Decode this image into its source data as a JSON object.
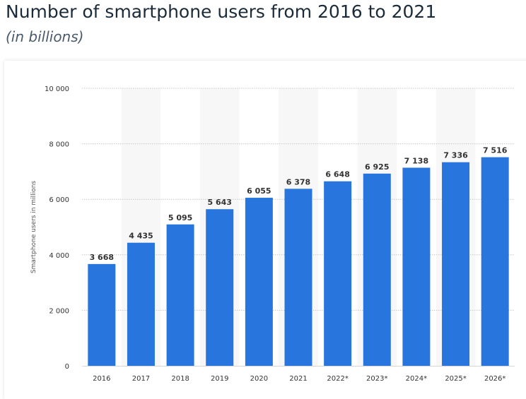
{
  "header": {
    "title": "Number of smartphone users from 2016 to 2021",
    "subtitle": "(in billions)"
  },
  "chart_data": {
    "type": "bar",
    "title": "Number of smartphone users from 2016 to 2021",
    "subtitle": "(in billions)",
    "xlabel": "",
    "ylabel": "Smartphone users in millions",
    "categories": [
      "2016",
      "2017",
      "2018",
      "2019",
      "2020",
      "2021",
      "2022*",
      "2023*",
      "2024*",
      "2025*",
      "2026*"
    ],
    "values": [
      3668,
      4435,
      5095,
      5643,
      6055,
      6378,
      6648,
      6925,
      7138,
      7336,
      7516
    ],
    "value_labels": [
      "3 668",
      "4 435",
      "5 095",
      "5 643",
      "6 055",
      "6 378",
      "6 648",
      "6 925",
      "7 138",
      "7 336",
      "7 516"
    ],
    "ylim": [
      0,
      10000
    ],
    "yticks": [
      0,
      2000,
      4000,
      6000,
      8000,
      10000
    ],
    "ytick_labels": [
      "0",
      "2 000",
      "4 000",
      "6 000",
      "8 000",
      "10 000"
    ],
    "grid": true,
    "bar_color": "#2876dd",
    "band_color": "#f7f7f7",
    "gridline_color": "#c8c8c8"
  }
}
